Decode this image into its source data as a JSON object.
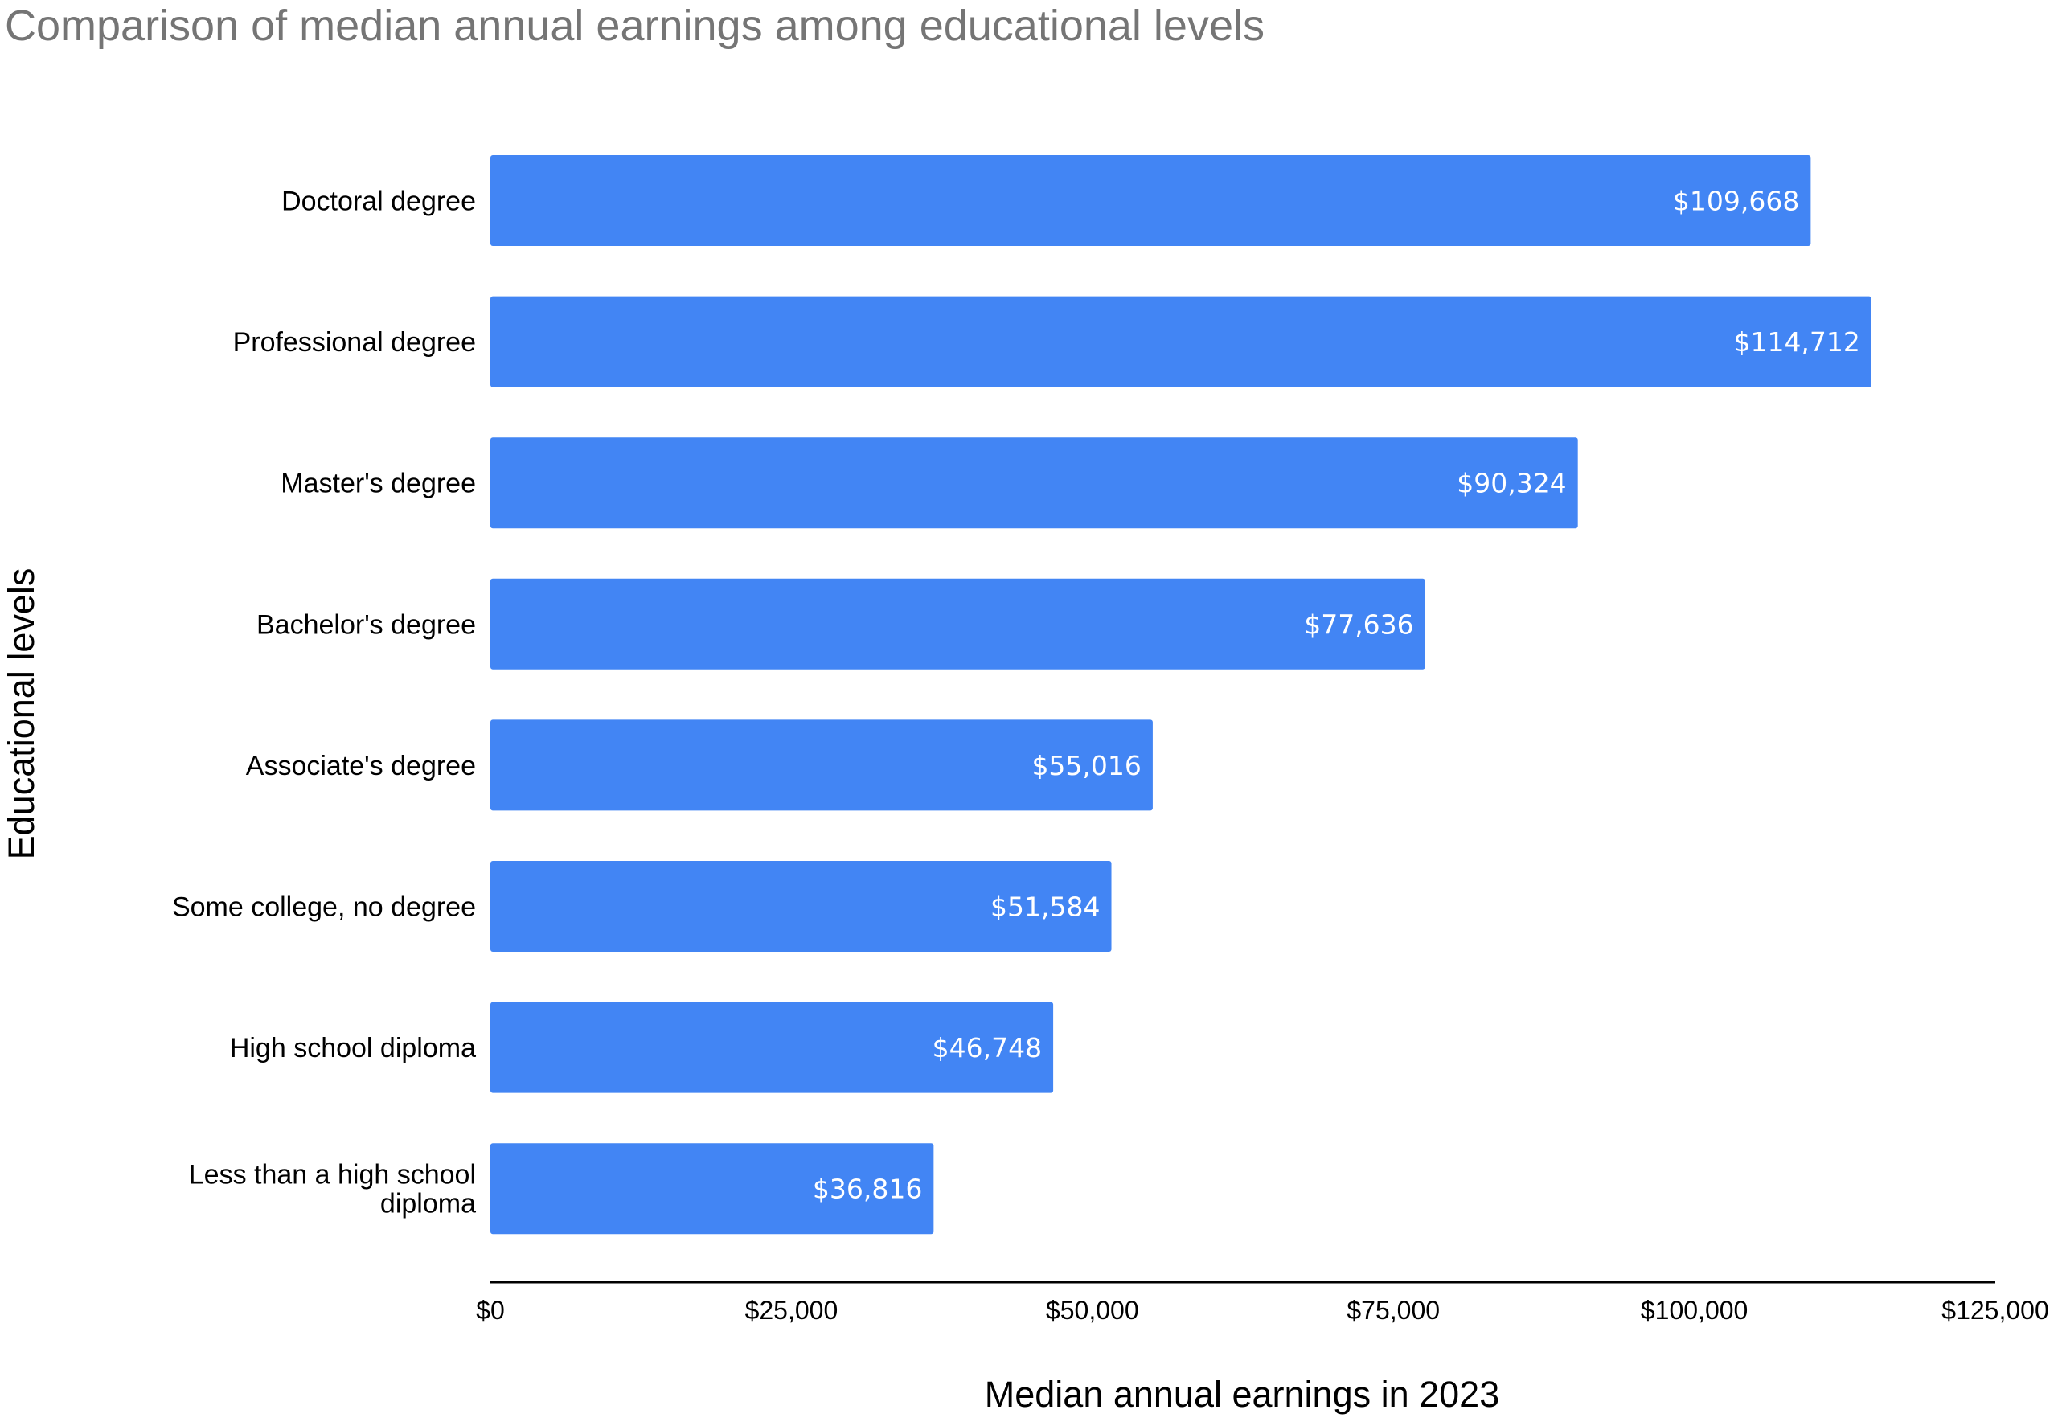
{
  "chart_data": {
    "type": "bar",
    "orientation": "horizontal",
    "title": "Comparison of median annual earnings among educational levels",
    "xlabel": "Median annual earnings in 2023",
    "ylabel": "Educational levels",
    "categories": [
      "Doctoral degree",
      "Professional degree",
      "Master's degree",
      "Bachelor's degree",
      "Associate's degree",
      "Some college, no degree",
      "High school diploma",
      "Less than a high school diploma"
    ],
    "values": [
      109668,
      114712,
      90324,
      77636,
      55016,
      51584,
      46748,
      36816
    ],
    "data_labels": [
      "$109,668",
      "$114,712",
      "$90,324",
      "$77,636",
      "$55,016",
      "$51,584",
      "$46,748",
      "$36,816"
    ],
    "xlim": [
      0,
      125000
    ],
    "x_ticks": [
      0,
      25000,
      50000,
      75000,
      100000,
      125000
    ],
    "x_tick_labels": [
      "$0",
      "$25,000",
      "$50,000",
      "$75,000",
      "$100,000",
      "$125,000"
    ],
    "bar_color": "#4285f4",
    "grid": false,
    "legend": "none"
  }
}
